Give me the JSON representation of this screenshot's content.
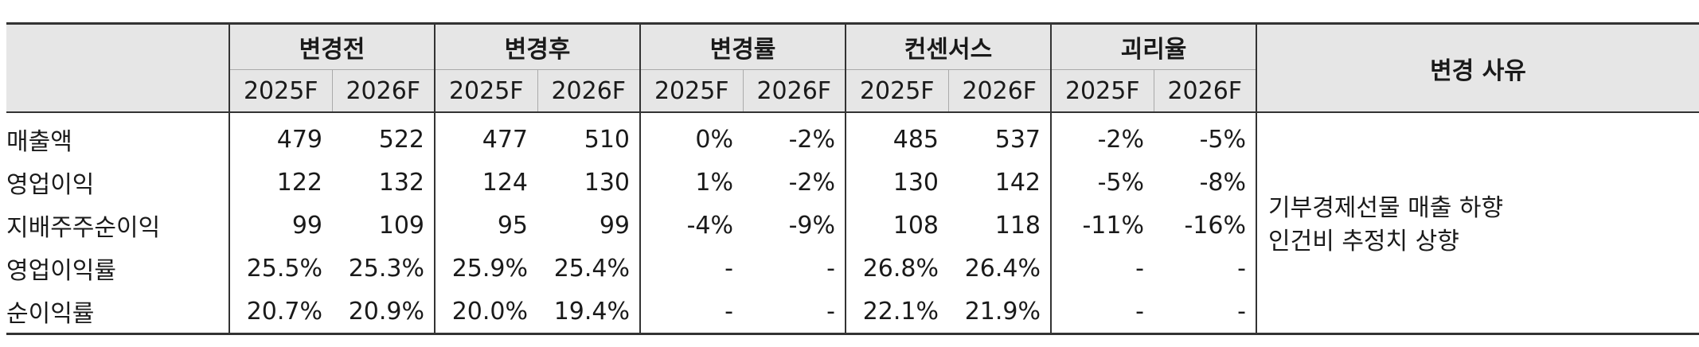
{
  "table": {
    "groups": [
      "변경전",
      "변경후",
      "변경률",
      "컨센서스",
      "괴리율"
    ],
    "years": [
      "2025F",
      "2026F"
    ],
    "reason_header": "변경 사유",
    "rows": [
      {
        "label": "매출액",
        "values": [
          "479",
          "522",
          "477",
          "510",
          "0%",
          "-2%",
          "485",
          "537",
          "-2%",
          "-5%"
        ]
      },
      {
        "label": "영업이익",
        "values": [
          "122",
          "132",
          "124",
          "130",
          "1%",
          "-2%",
          "130",
          "142",
          "-5%",
          "-8%"
        ]
      },
      {
        "label": "지배주주순이익",
        "values": [
          "99",
          "109",
          "95",
          "99",
          "-4%",
          "-9%",
          "108",
          "118",
          "-11%",
          "-16%"
        ]
      },
      {
        "label": "영업이익률",
        "values": [
          "25.5%",
          "25.3%",
          "25.9%",
          "25.4%",
          "-",
          "-",
          "26.8%",
          "26.4%",
          "-",
          "-"
        ]
      },
      {
        "label": "순이익률",
        "values": [
          "20.7%",
          "20.9%",
          "20.0%",
          "19.4%",
          "-",
          "-",
          "22.1%",
          "21.9%",
          "-",
          "-"
        ]
      }
    ],
    "reasons": [
      "기부경제선물 매출 하향",
      "인건비 추정치 상향"
    ]
  }
}
